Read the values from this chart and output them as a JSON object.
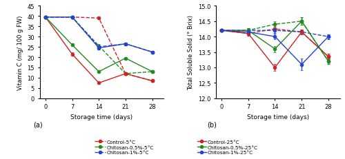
{
  "x": [
    0,
    7,
    14,
    21,
    28
  ],
  "vitC": {
    "control_5": [
      39.5,
      39.5,
      39.0,
      12.0,
      8.5
    ],
    "chitosan05_5": [
      39.5,
      39.5,
      25.5,
      12.0,
      13.0
    ],
    "chitosan1_5": [
      39.5,
      39.5,
      25.0,
      26.5,
      22.5
    ],
    "control_25": [
      39.5,
      21.5,
      7.5,
      12.0,
      8.5
    ],
    "chitosan05_25": [
      39.5,
      26.0,
      13.0,
      19.5,
      13.0
    ],
    "chitosan1_25": [
      39.5,
      39.5,
      24.5,
      26.5,
      22.5
    ]
  },
  "vitC_err": {
    "control_5": [
      0.4,
      0.5,
      0.6,
      0.6,
      0.5
    ],
    "chitosan05_5": [
      0.4,
      0.5,
      0.8,
      0.6,
      0.5
    ],
    "chitosan1_5": [
      0.4,
      0.5,
      0.8,
      0.7,
      0.6
    ],
    "control_25": [
      0.4,
      0.8,
      0.4,
      0.6,
      0.5
    ],
    "chitosan05_25": [
      0.4,
      0.7,
      0.5,
      0.6,
      0.5
    ],
    "chitosan1_25": [
      0.4,
      0.6,
      0.8,
      0.7,
      0.6
    ]
  },
  "tss": {
    "control_5": [
      14.2,
      14.1,
      14.25,
      14.15,
      13.35
    ],
    "chitosan05_5": [
      14.2,
      14.2,
      14.4,
      14.5,
      13.2
    ],
    "chitosan1_5": [
      14.2,
      14.2,
      14.2,
      14.15,
      14.0
    ],
    "control_25": [
      14.2,
      14.1,
      13.0,
      14.15,
      13.35
    ],
    "chitosan05_25": [
      14.2,
      14.2,
      13.6,
      14.5,
      13.2
    ],
    "chitosan1_25": [
      14.2,
      14.15,
      14.0,
      13.1,
      14.0
    ]
  },
  "tss_err": {
    "control_5": [
      0.04,
      0.07,
      0.08,
      0.07,
      0.09
    ],
    "chitosan05_5": [
      0.04,
      0.06,
      0.1,
      0.12,
      0.09
    ],
    "chitosan1_5": [
      0.04,
      0.06,
      0.09,
      0.08,
      0.08
    ],
    "control_25": [
      0.04,
      0.08,
      0.12,
      0.08,
      0.09
    ],
    "chitosan05_25": [
      0.04,
      0.07,
      0.1,
      0.12,
      0.09
    ],
    "chitosan1_25": [
      0.04,
      0.07,
      0.09,
      0.18,
      0.08
    ]
  },
  "colors": {
    "red": "#cc2222",
    "green": "#228822",
    "blue": "#2244cc"
  },
  "ylabel_a": "Vitamin C (mg/ 100 g FW)",
  "ylabel_b": "Total Soluble Solid (° Brix)",
  "xlabel": "Storage time (days)",
  "ylim_a": [
    0,
    45
  ],
  "ylim_b": [
    12.0,
    15.0
  ],
  "yticks_a": [
    0,
    5,
    10,
    15,
    20,
    25,
    30,
    35,
    40,
    45
  ],
  "yticks_b": [
    12.0,
    12.5,
    13.0,
    13.5,
    14.0,
    14.5,
    15.0
  ],
  "xticks": [
    0,
    7,
    14,
    21,
    28
  ],
  "legend_dashed": [
    "Control-5°C",
    "Chitosan-0.5%-5°C",
    "Chitosan-1%-5°C"
  ],
  "legend_solid": [
    "Control-25°C",
    "Chitosan-0.5%-25°C",
    "Chitosan-1%-25°C"
  ]
}
